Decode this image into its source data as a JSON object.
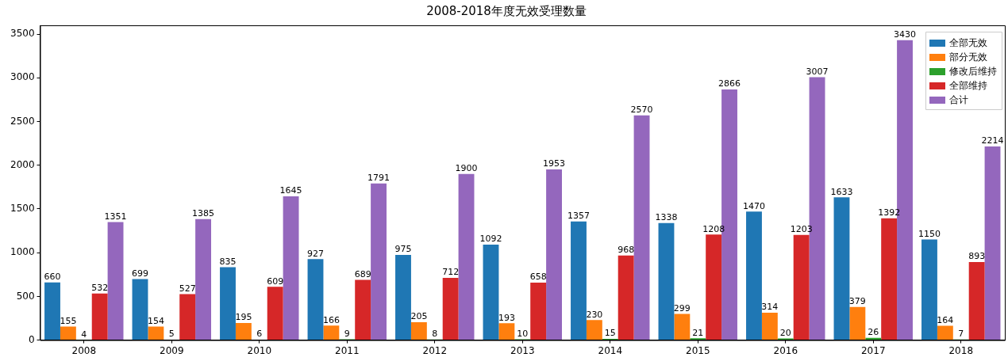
{
  "chart_data": {
    "type": "bar",
    "title": "2008-2018年度无效受理数量",
    "categories": [
      "2008",
      "2009",
      "2010",
      "2011",
      "2012",
      "2013",
      "2014",
      "2015",
      "2016",
      "2017",
      "2018"
    ],
    "series": [
      {
        "name": "全部无效",
        "color": "#1f77b4",
        "values": [
          660,
          699,
          835,
          927,
          975,
          1092,
          1357,
          1338,
          1470,
          1633,
          1150
        ]
      },
      {
        "name": "部分无效",
        "color": "#ff7f0e",
        "values": [
          155,
          154,
          195,
          166,
          205,
          193,
          230,
          299,
          314,
          379,
          164
        ]
      },
      {
        "name": "修改后维持",
        "color": "#2ca02c",
        "values": [
          4,
          5,
          6,
          9,
          8,
          10,
          15,
          21,
          20,
          26,
          7
        ]
      },
      {
        "name": "全部维持",
        "color": "#d62728",
        "values": [
          532,
          527,
          609,
          689,
          712,
          658,
          968,
          1208,
          1203,
          1392,
          893
        ]
      },
      {
        "name": "合计",
        "color": "#9467bd",
        "values": [
          1351,
          1385,
          1645,
          1791,
          1900,
          1953,
          2570,
          2866,
          3007,
          3430,
          2214
        ]
      }
    ],
    "ylim": [
      0,
      3600
    ],
    "yticks": [
      0,
      500,
      1000,
      1500,
      2000,
      2500,
      3000,
      3500
    ],
    "grid": false,
    "legend": "top right",
    "data_labels": true
  }
}
